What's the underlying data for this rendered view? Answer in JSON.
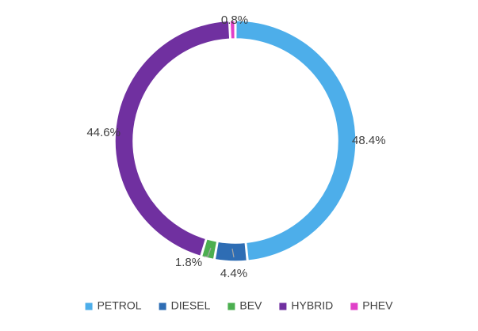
{
  "chart_data": {
    "type": "pie",
    "variant": "donut",
    "title": "",
    "categories": [
      "PETROL",
      "DIESEL",
      "BEV",
      "HYBRID",
      "PHEV"
    ],
    "values": [
      48.4,
      4.4,
      1.8,
      44.6,
      0.8
    ],
    "labels": [
      "48.4%",
      "4.4%",
      "1.8%",
      "44.6%",
      "0.8%"
    ],
    "colors": [
      "#4DAEEA",
      "#2E6DB4",
      "#4CAF50",
      "#7030A0",
      "#E040C8"
    ],
    "legend_position": "bottom"
  }
}
